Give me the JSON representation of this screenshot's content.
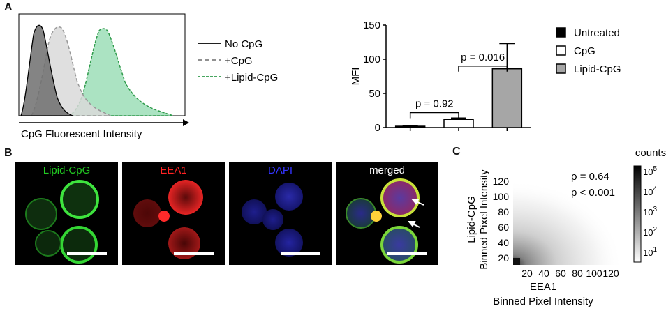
{
  "panels": {
    "a": "A",
    "b": "B",
    "c": "C"
  },
  "histogram": {
    "xlabel": "CpG Fluorescent Intensity",
    "legend": [
      {
        "label": "No CpG",
        "style": "solid",
        "color": "#000000"
      },
      {
        "label": "+CpG",
        "style": "dashed",
        "color": "#808080"
      },
      {
        "label": "+Lipid-CpG",
        "style": "dashed",
        "color": "#2e9a4a"
      }
    ]
  },
  "chart_data": [
    {
      "type": "bar",
      "categories": [
        "Untreated",
        "CpG",
        "Lipid-CpG"
      ],
      "values": [
        2,
        12,
        86
      ],
      "errors": [
        1,
        2,
        37
      ],
      "colors": [
        "#000000",
        "#ffffff",
        "#a6a6a6"
      ],
      "ylabel": "MFI",
      "ylim": [
        0,
        150
      ],
      "yticks": [
        "0",
        "50",
        "100",
        "150"
      ],
      "annotations": [
        {
          "label": "p = 0.92",
          "between": [
            "Untreated",
            "CpG"
          ]
        },
        {
          "label": "p = 0.016",
          "between": [
            "CpG",
            "Lipid-CpG"
          ]
        }
      ],
      "legend": [
        "Untreated",
        "CpG",
        "Lipid-CpG"
      ],
      "legend_position": "right"
    },
    {
      "type": "heatmap",
      "xlabel_line1": "EEA1",
      "xlabel_line2": "Binned Pixel Intensity",
      "ylabel_line1": "Lipid-CpG",
      "ylabel_line2": "Binned Pixel Intensity",
      "xticks": [
        "20",
        "40",
        "60",
        "80",
        "100",
        "120"
      ],
      "yticks": [
        "20",
        "40",
        "60",
        "80",
        "100",
        "120"
      ],
      "colorbar_title": "counts",
      "colorbar_ticks": [
        "10",
        "10",
        "10",
        "10",
        "10"
      ],
      "colorbar_exponents": [
        "5",
        "4",
        "3",
        "2",
        "1"
      ],
      "stat_rho": "ρ = 0.64",
      "stat_p": "p < 0.001"
    }
  ],
  "microscopy": {
    "labels": [
      "Lipid-CpG",
      "EEA1",
      "DAPI",
      "merged"
    ],
    "label_colors": [
      "#22cc22",
      "#ff2222",
      "#3333ff",
      "#ffffff"
    ]
  }
}
